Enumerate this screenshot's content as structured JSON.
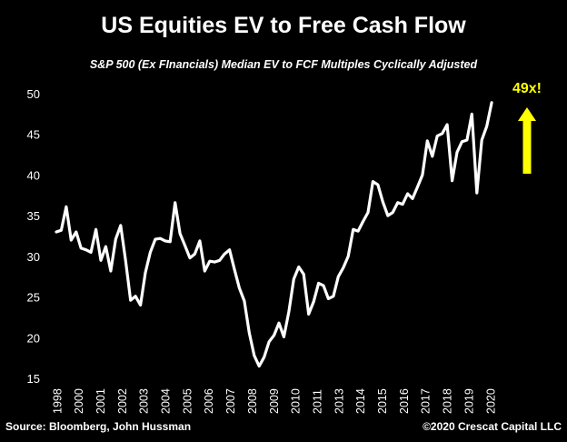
{
  "colors": {
    "background": "#000000",
    "line": "#ffffff",
    "annotation": "#ffff00",
    "text": "#ffffff"
  },
  "footer": {
    "source": "Source: Bloomberg, John Hussman",
    "copyright": "©2020 Crescat Capital LLC"
  },
  "chart_data": {
    "type": "line",
    "title": "US Equities EV to Free Cash Flow",
    "subtitle": "S&P 500 (Ex FInancials) Median EV to FCF Multiples Cyclically Adjusted",
    "xlabel": "",
    "ylabel": "",
    "ylim": [
      15,
      50
    ],
    "yticks": [
      15,
      20,
      25,
      30,
      35,
      40,
      45,
      50
    ],
    "xticks": [
      "1998",
      "2000",
      "2001",
      "2002",
      "2003",
      "2004",
      "2005",
      "2006",
      "2007",
      "2008",
      "2009",
      "2010",
      "2011",
      "2013",
      "2014",
      "2015",
      "2016",
      "2017",
      "2018",
      "2019",
      "2020"
    ],
    "grid": false,
    "legend": "none",
    "annotation": {
      "text": "49x!",
      "arrow": "up"
    },
    "series": [
      {
        "x": [
          1998.0,
          1998.25,
          1998.5,
          1998.75,
          1999.0,
          1999.25,
          1999.5,
          1999.75,
          2000.0,
          2000.25,
          2000.5,
          2000.75,
          2001.0,
          2001.25,
          2001.5,
          2001.75,
          2002.0,
          2002.25,
          2002.5,
          2002.75,
          2003.0,
          2003.25,
          2003.5,
          2003.75,
          2004.0,
          2004.25,
          2004.5,
          2004.75,
          2005.0,
          2005.25,
          2005.5,
          2005.75,
          2006.0,
          2006.25,
          2006.5,
          2006.75,
          2007.0,
          2007.25,
          2007.5,
          2007.75,
          2008.0,
          2008.25,
          2008.5,
          2008.75,
          2009.0,
          2009.25,
          2009.5,
          2009.75,
          2010.0,
          2010.25,
          2010.5,
          2010.75,
          2011.0,
          2011.25,
          2011.5,
          2011.75,
          2012.0,
          2012.25,
          2012.5,
          2012.75,
          2013.0,
          2013.25,
          2013.5,
          2013.75,
          2014.0,
          2014.25,
          2014.5,
          2014.75,
          2015.0,
          2015.25,
          2015.5,
          2015.75,
          2016.0,
          2016.25,
          2016.5,
          2016.75,
          2017.0,
          2017.25,
          2017.5,
          2017.75,
          2018.0,
          2018.25,
          2018.5,
          2018.75,
          2019.0,
          2019.25,
          2019.5,
          2019.75,
          2020.0,
          2020.25
        ],
        "values": [
          33.0,
          33.2,
          36.1,
          32.0,
          33.0,
          31.0,
          30.8,
          30.5,
          33.3,
          29.5,
          31.2,
          28.2,
          32.1,
          33.8,
          29.5,
          24.6,
          25.1,
          24.0,
          28.0,
          30.5,
          32.1,
          32.2,
          31.9,
          31.8,
          36.6,
          32.8,
          31.3,
          29.8,
          30.3,
          31.9,
          28.2,
          29.4,
          29.3,
          29.5,
          30.3,
          30.8,
          28.4,
          26.1,
          24.5,
          20.6,
          17.8,
          16.5,
          17.6,
          19.5,
          20.3,
          21.8,
          20.1,
          23.2,
          27.2,
          28.7,
          27.8,
          22.9,
          24.4,
          26.7,
          26.4,
          24.8,
          25.1,
          27.5,
          28.6,
          30.0,
          33.3,
          33.1,
          34.3,
          35.4,
          39.2,
          38.8,
          36.7,
          35.0,
          35.4,
          36.6,
          36.4,
          37.7,
          37.1,
          38.5,
          40.0,
          44.2,
          42.3,
          44.8,
          45.1,
          46.2,
          39.3,
          42.8,
          44.1,
          44.3,
          47.5,
          37.8,
          44.3,
          46.0,
          48.9,
          null
        ]
      }
    ]
  }
}
